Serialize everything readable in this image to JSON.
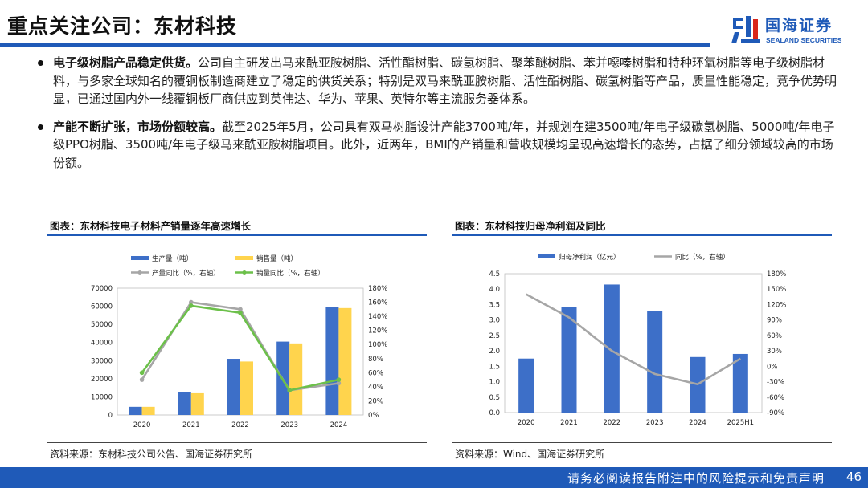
{
  "header": {
    "title": "重点关注公司：东材科技",
    "logo_cn": "国海证券",
    "logo_en": "SEALAND SECURITIES"
  },
  "bullets": [
    {
      "lead": "电子级树脂产品稳定供货。",
      "text": "公司自主研发出马来酰亚胺树脂、活性酯树脂、碳氢树脂、聚苯醚树脂、苯并噁嗪树脂和特种环氧树脂等电子级树脂材料，与多家全球知名的覆铜板制造商建立了稳定的供货关系；特别是双马来酰亚胺树脂、活性酯树脂、碳氢树脂等产品，质量性能稳定，竞争优势明显，已通过国内外一线覆铜板厂商供应到英伟达、华为、苹果、英特尔等主流服务器体系。"
    },
    {
      "lead": "产能不断扩张，市场份额较高。",
      "text": "截至2025年5月，公司具有双马树脂设计产能3700吨/年，并规划在建3500吨/年电子级碳氢树脂、5000吨/年电子级PPO树脂、3500吨/年电子级马来酰亚胺树脂项目。此外，近两年，BMI的产销量和营收规模均呈现高速增长的态势，占据了细分领域较高的市场份额。"
    }
  ],
  "figures": {
    "left_title": "图表：东材科技电子材料产销量逐年高速增长",
    "left_source": "资料来源：东材科技公司公告、国海证券研究所",
    "right_title": "图表：东材科技归母净利润及同比",
    "right_source": "资料来源：Wind、国海证券研究所"
  },
  "chart_data": [
    {
      "type": "bar",
      "categories": [
        "2020",
        "2021",
        "2022",
        "2023",
        "2024"
      ],
      "series": [
        {
          "name": "生产量（吨）",
          "kind": "bar",
          "axis": "left",
          "color": "#3d6fc8",
          "values": [
            4500,
            12500,
            31000,
            40500,
            59500
          ]
        },
        {
          "name": "销售量（吨）",
          "kind": "bar",
          "axis": "left",
          "color": "#ffd44d",
          "values": [
            4500,
            12000,
            29500,
            39500,
            59000
          ]
        },
        {
          "name": "产量同比（%，右轴）",
          "kind": "line",
          "axis": "right",
          "color": "#a6a6a6",
          "values": [
            50,
            160,
            150,
            35,
            45
          ]
        },
        {
          "name": "销量同比（%，右轴）",
          "kind": "line",
          "axis": "right",
          "color": "#6cc04a",
          "values": [
            60,
            155,
            145,
            35,
            50
          ]
        }
      ],
      "ylim": [
        0,
        70000
      ],
      "yticks": [
        "0",
        "10000",
        "20000",
        "30000",
        "40000",
        "50000",
        "60000",
        "70000"
      ],
      "y2lim": [
        0,
        180
      ],
      "y2ticks": [
        "0%",
        "20%",
        "40%",
        "60%",
        "80%",
        "100%",
        "120%",
        "140%",
        "160%",
        "180%"
      ],
      "legend": "top",
      "grid": false
    },
    {
      "type": "bar",
      "categories": [
        "2020",
        "2021",
        "2022",
        "2023",
        "2024",
        "2025H1"
      ],
      "series": [
        {
          "name": "归母净利润（亿元）",
          "kind": "bar",
          "axis": "left",
          "color": "#3d6fc8",
          "values": [
            1.75,
            3.42,
            4.15,
            3.3,
            1.8,
            1.9
          ]
        },
        {
          "name": "同比（%，右轴）",
          "kind": "line",
          "axis": "right",
          "color": "#a6a6a6",
          "values": [
            140,
            95,
            30,
            -15,
            -35,
            15
          ]
        }
      ],
      "ylim": [
        0,
        4.5
      ],
      "yticks": [
        "0.0",
        "0.5",
        "1.0",
        "1.5",
        "2.0",
        "2.5",
        "3.0",
        "3.5",
        "4.0",
        "4.5"
      ],
      "y2lim": [
        -90,
        180
      ],
      "y2ticks": [
        "-90%",
        "-60%",
        "-30%",
        "0%",
        "30%",
        "60%",
        "90%",
        "120%",
        "150%",
        "180%"
      ],
      "legend": "top",
      "grid": false
    }
  ],
  "footer": {
    "disclaimer": "请务必阅读报告附注中的风险提示和免责声明",
    "page": "46"
  },
  "colors": {
    "brand_blue": "#1f5ab8",
    "bar_blue": "#3d6fc8",
    "bar_yellow": "#ffd44d",
    "line_gray": "#a6a6a6",
    "line_green": "#6cc04a"
  }
}
